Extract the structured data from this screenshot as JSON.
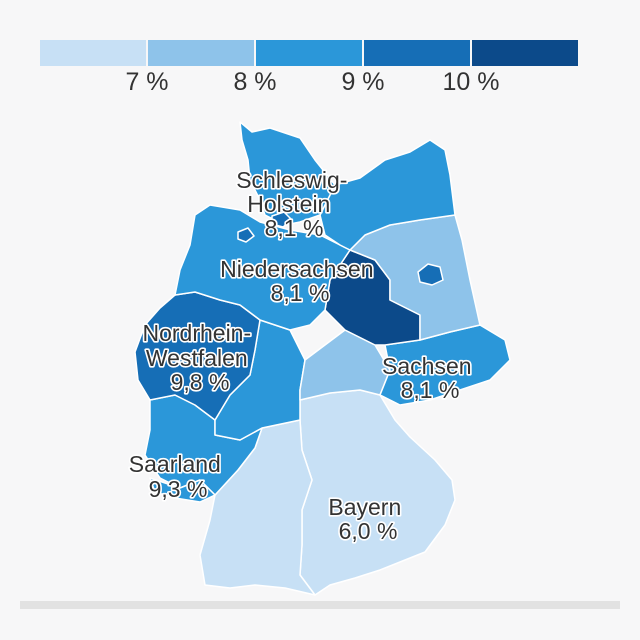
{
  "legend": {
    "colors": [
      "#c7e0f5",
      "#8ec3ea",
      "#2b97d9",
      "#166eb6",
      "#0c4a8a"
    ],
    "ticks": [
      "7 %",
      "8 %",
      "9 %",
      "10 %"
    ]
  },
  "regions": {
    "schleswig_holstein": {
      "name_line1": "Schleswig-",
      "name_line2": "Holstein",
      "value": "8,1 %",
      "color": "#2b97d9"
    },
    "niedersachsen": {
      "name": "Niedersachsen",
      "value": "8,1 %",
      "color": "#2b97d9"
    },
    "nordrhein_westfalen": {
      "name_line1": "Nordrhein-",
      "name_line2": "Westfalen",
      "value": "9,8 %",
      "color": "#166eb6"
    },
    "saarland": {
      "name": "Saarland",
      "value": "9,3 %",
      "color": "#2b97d9"
    },
    "sachsen": {
      "name": "Sachsen",
      "value": "8,1 %",
      "color": "#2b97d9"
    },
    "bayern": {
      "name": "Bayern",
      "value": "6,0 %",
      "color": "#c7e0f5"
    },
    "mecklenburg_vorpommern": {
      "color": "#2b97d9"
    },
    "brandenburg": {
      "color": "#8ec3ea"
    },
    "berlin": {
      "color": "#166eb6"
    },
    "sachsen_anhalt": {
      "color": "#0c4a8a"
    },
    "thueringen": {
      "color": "#8ec3ea"
    },
    "hessen": {
      "color": "#2b97d9"
    },
    "rheinland_pfalz": {
      "color": "#2b97d9"
    },
    "baden_wuerttemberg": {
      "color": "#c7e0f5"
    },
    "hamburg": {
      "color": "#166eb6"
    },
    "bremen": {
      "color": "#166eb6"
    }
  }
}
